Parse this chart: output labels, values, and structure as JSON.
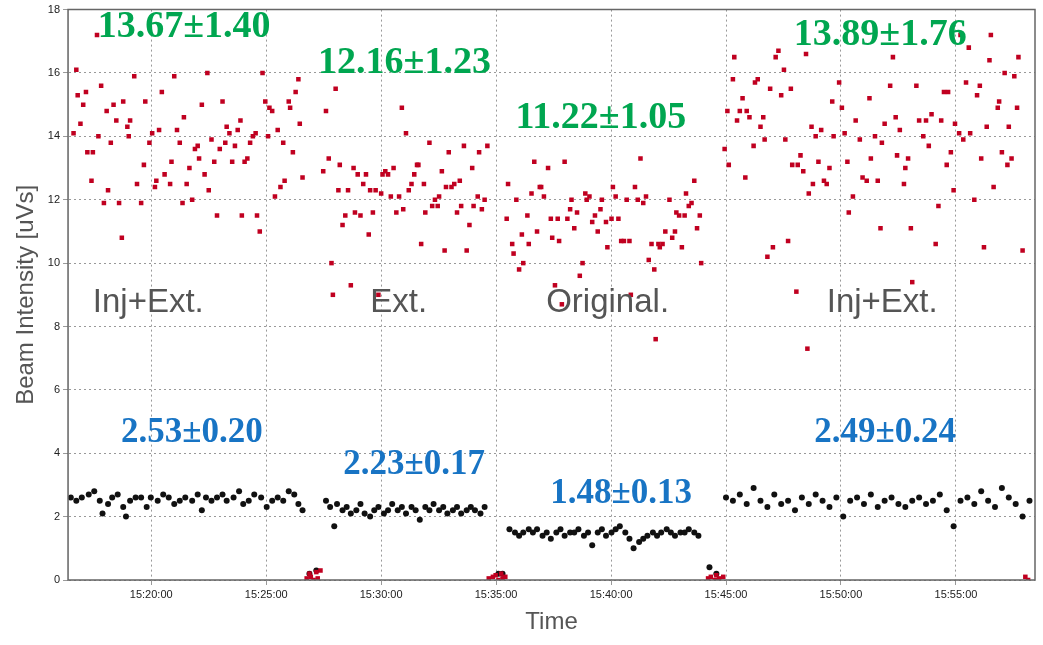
{
  "chart_data": {
    "type": "scatter",
    "xlabel": "Time",
    "ylabel": "Beam Intensity [uVs]",
    "xlim": [
      15.273,
      15.974
    ],
    "ylim": [
      0,
      18
    ],
    "xticks": [
      {
        "value": 15.3333,
        "label": "15:20:00"
      },
      {
        "value": 15.4167,
        "label": "15:25:00"
      },
      {
        "value": 15.5,
        "label": "15:30:00"
      },
      {
        "value": 15.5833,
        "label": "15:35:00"
      },
      {
        "value": 15.6667,
        "label": "15:40:00"
      },
      {
        "value": 15.75,
        "label": "15:45:00"
      },
      {
        "value": 15.8333,
        "label": "15:50:00"
      },
      {
        "value": 15.9167,
        "label": "15:55:00"
      }
    ],
    "yticks": [
      0,
      2,
      4,
      6,
      8,
      10,
      12,
      14,
      16,
      18
    ],
    "grid": true,
    "legend": false,
    "series": [
      {
        "color": "#c00020",
        "marker": "square",
        "x": [
          15.277,
          15.279,
          15.28,
          15.282,
          15.284,
          15.286,
          15.287,
          15.29,
          15.291,
          15.294,
          15.295,
          15.297,
          15.299,
          15.301,
          15.302,
          15.304,
          15.306,
          15.308,
          15.31,
          15.312,
          15.313,
          15.316,
          15.317,
          15.318,
          15.321,
          15.323,
          15.326,
          15.328,
          15.329,
          15.332,
          15.334,
          15.336,
          15.337,
          15.339,
          15.341,
          15.343,
          15.347,
          15.348,
          15.35,
          15.352,
          15.354,
          15.356,
          15.357,
          15.359,
          15.361,
          15.363,
          15.365,
          15.367,
          15.368,
          15.37,
          15.372,
          15.374,
          15.375,
          15.377,
          15.379,
          15.381,
          15.383,
          15.385,
          15.387,
          15.388,
          15.39,
          15.392,
          15.394,
          15.396,
          15.398,
          15.399,
          15.401,
          15.403,
          15.405,
          15.407,
          15.409,
          15.41,
          15.412,
          15.414,
          15.416,
          15.418,
          15.419,
          15.421,
          15.423,
          15.425,
          15.427,
          15.429,
          15.43,
          15.433,
          15.434,
          15.436,
          15.438,
          15.44,
          15.441,
          15.443,
          15.446,
          15.448,
          15.449,
          15.451,
          15.453,
          15.454,
          15.456,
          15.458,
          15.46,
          15.462,
          15.464,
          15.465,
          15.467,
          15.469,
          15.47,
          15.472,
          15.474,
          15.476,
          15.478,
          15.48,
          15.481,
          15.483,
          15.485,
          15.487,
          15.489,
          15.491,
          15.492,
          15.494,
          15.496,
          15.498,
          15.5,
          15.501,
          15.503,
          15.505,
          15.507,
          15.509,
          15.511,
          15.513,
          15.515,
          15.516,
          15.518,
          15.52,
          15.522,
          15.524,
          15.526,
          15.527,
          15.529,
          15.531,
          15.532,
          15.535,
          15.537,
          15.539,
          15.541,
          15.542,
          15.544,
          15.546,
          15.547,
          15.549,
          15.551,
          15.553,
          15.555,
          15.557,
          15.558,
          15.56,
          15.562,
          15.564,
          15.566,
          15.567,
          15.57,
          15.571,
          15.573,
          15.575,
          15.577,
          15.578,
          15.581,
          15.583,
          15.585,
          15.587,
          15.588,
          15.59,
          15.591,
          15.592,
          15.595,
          15.596,
          15.598,
          15.6,
          15.602,
          15.603,
          15.606,
          15.607,
          15.609,
          15.611,
          15.613,
          15.615,
          15.616,
          15.618,
          15.621,
          15.623,
          15.624,
          15.626,
          15.628,
          15.629,
          15.631,
          15.633,
          15.635,
          15.637,
          15.638,
          15.64,
          15.642,
          15.644,
          15.646,
          15.648,
          15.649,
          15.651,
          15.653,
          15.655,
          15.657,
          15.659,
          15.66,
          15.663,
          15.664,
          15.667,
          15.668,
          15.67,
          15.672,
          15.674,
          15.676,
          15.678,
          15.68,
          15.681,
          15.684,
          15.686,
          15.688,
          15.69,
          15.692,
          15.694,
          15.696,
          15.698,
          15.699,
          15.701,
          15.702,
          15.704,
          15.706,
          15.709,
          15.711,
          15.713,
          15.714,
          15.716,
          15.718,
          15.72,
          15.721,
          15.723,
          15.725,
          15.727,
          15.729,
          15.731,
          15.732,
          15.737,
          15.739,
          15.742,
          15.743,
          15.745,
          15.748,
          15.749,
          15.751,
          15.752,
          15.755,
          15.756,
          15.758,
          15.76,
          15.762,
          15.764,
          15.765,
          15.767,
          15.77,
          15.771,
          15.773,
          15.775,
          15.777,
          15.778,
          15.78,
          15.782,
          15.784,
          15.786,
          15.788,
          15.79,
          15.792,
          15.793,
          15.795,
          15.797,
          15.798,
          15.801,
          15.802,
          15.804,
          15.806,
          15.808,
          15.809,
          15.81,
          15.812,
          15.813,
          15.815,
          15.817,
          15.819,
          15.821,
          15.823,
          15.825,
          15.827,
          15.828,
          15.832,
          15.834,
          15.836,
          15.838,
          15.839,
          15.842,
          15.844,
          15.847,
          15.849,
          15.852,
          15.854,
          15.855,
          15.858,
          15.86,
          15.862,
          15.863,
          15.865,
          15.869,
          15.871,
          15.873,
          15.874,
          15.876,
          15.879,
          15.88,
          15.882,
          15.884,
          15.885,
          15.888,
          15.89,
          15.893,
          15.895,
          15.897,
          15.899,
          15.902,
          15.904,
          15.906,
          15.908,
          15.91,
          15.911,
          15.913,
          15.915,
          15.916,
          15.919,
          15.92,
          15.922,
          15.924,
          15.926,
          15.927,
          15.93,
          15.932,
          15.934,
          15.935,
          15.937,
          15.939,
          15.941,
          15.942,
          15.944,
          15.947,
          15.948,
          15.95,
          15.952,
          15.954,
          15.955,
          15.957,
          15.959,
          15.961,
          15.962,
          15.965,
          15.967,
          15.969
        ],
        "values": [
          14.1,
          16.1,
          15.3,
          14.4,
          15.0,
          15.4,
          13.5,
          12.6,
          13.5,
          17.2,
          14.0,
          15.6,
          11.9,
          14.8,
          12.3,
          13.8,
          15.0,
          14.5,
          11.9,
          10.8,
          15.1,
          14.3,
          14.0,
          14.5,
          15.9,
          12.5,
          11.9,
          13.1,
          15.1,
          13.8,
          14.1,
          12.4,
          12.6,
          14.2,
          15.4,
          12.8,
          12.5,
          13.2,
          15.9,
          14.2,
          13.8,
          11.9,
          14.6,
          12.5,
          13.0,
          12.0,
          13.6,
          13.7,
          13.3,
          15.0,
          12.8,
          16.0,
          12.3,
          13.9,
          13.2,
          11.5,
          13.6,
          15.1,
          13.8,
          14.3,
          14.1,
          13.2,
          13.7,
          14.2,
          14.5,
          11.5,
          13.2,
          13.3,
          13.8,
          14.0,
          14.1,
          11.5,
          11.0,
          16.0,
          15.1,
          14.0,
          14.9,
          14.8,
          12.1,
          14.2,
          12.4,
          13.8,
          12.6,
          15.1,
          14.9,
          13.5,
          15.4,
          15.8,
          14.4,
          12.7,
          0.05,
          0.2,
          0.1,
          0.0,
          0.25,
          0.05,
          0.3,
          12.9,
          14.8,
          13.3,
          10.0,
          9.0,
          15.5,
          12.3,
          13.1,
          11.2,
          11.5,
          12.3,
          9.3,
          13.0,
          11.6,
          12.8,
          11.5,
          12.5,
          12.8,
          10.9,
          12.3,
          11.6,
          12.3,
          9.0,
          12.2,
          12.8,
          12.9,
          12.8,
          12.1,
          13.0,
          11.6,
          12.1,
          14.9,
          11.7,
          14.1,
          12.3,
          12.5,
          12.8,
          13.1,
          13.1,
          10.6,
          12.5,
          11.6,
          13.8,
          11.8,
          12.0,
          11.8,
          12.1,
          12.9,
          10.4,
          12.4,
          13.5,
          12.4,
          12.5,
          11.6,
          12.6,
          11.8,
          13.7,
          10.4,
          11.2,
          13.0,
          11.8,
          12.1,
          13.5,
          11.7,
          12.0,
          13.7,
          0.05,
          0.1,
          0.15,
          0.0,
          0.2,
          0.05,
          0.1,
          11.4,
          12.5,
          10.6,
          10.3,
          12.0,
          9.8,
          10.9,
          10.0,
          11.5,
          10.6,
          12.2,
          13.2,
          11.0,
          12.4,
          12.4,
          12.1,
          13.0,
          11.4,
          10.8,
          9.3,
          11.4,
          10.7,
          8.7,
          13.2,
          11.4,
          11.7,
          12.0,
          11.1,
          11.6,
          9.6,
          10.0,
          12.2,
          12.0,
          12.1,
          11.3,
          11.5,
          11.0,
          11.7,
          12.0,
          11.3,
          10.5,
          11.4,
          12.4,
          12.1,
          11.4,
          10.7,
          10.7,
          12.0,
          10.7,
          9.0,
          12.4,
          12.0,
          13.3,
          11.9,
          12.1,
          10.1,
          10.6,
          9.8,
          7.6,
          10.6,
          10.5,
          10.6,
          11.0,
          12.0,
          10.8,
          11.0,
          11.6,
          11.5,
          10.5,
          11.5,
          12.2,
          11.8,
          11.9,
          12.6,
          11.1,
          11.5,
          10.0,
          0.05,
          0.1,
          0.0,
          0.15,
          0.05,
          0.1,
          13.6,
          14.8,
          13.1,
          15.8,
          16.5,
          14.5,
          14.8,
          15.2,
          12.7,
          14.8,
          14.6,
          13.7,
          15.7,
          15.8,
          14.3,
          14.6,
          13.9,
          10.2,
          15.5,
          10.5,
          16.5,
          16.7,
          15.3,
          16.1,
          13.9,
          10.7,
          15.5,
          13.1,
          9.1,
          13.1,
          13.4,
          12.9,
          16.6,
          7.3,
          12.2,
          14.3,
          12.5,
          14.0,
          13.2,
          14.2,
          12.6,
          12.5,
          13.0,
          15.1,
          14.0,
          15.7,
          14.9,
          14.1,
          13.2,
          11.6,
          12.1,
          14.5,
          13.9,
          12.7,
          12.6,
          15.2,
          13.3,
          14.0,
          12.6,
          11.1,
          13.8,
          14.4,
          15.6,
          16.5,
          14.6,
          13.4,
          14.2,
          12.5,
          13.0,
          13.3,
          11.1,
          9.4,
          15.6,
          14.5,
          14.0,
          14.5,
          13.7,
          14.7,
          10.6,
          11.8,
          14.5,
          15.4,
          13.1,
          15.4,
          13.5,
          12.3,
          14.4,
          14.1,
          17.2,
          13.9,
          15.7,
          16.8,
          14.1,
          12.0,
          15.3,
          15.6,
          13.3,
          10.5,
          14.3,
          16.4,
          17.2,
          12.4,
          14.9,
          15.1,
          13.5,
          16.0,
          13.1,
          14.3,
          13.3,
          15.9,
          14.9,
          16.5,
          10.4,
          0.1,
          0.0
        ]
      },
      {
        "color": "#111111",
        "marker": "circle",
        "x": [
          15.275,
          15.279,
          15.283,
          15.288,
          15.292,
          15.296,
          15.298,
          15.302,
          15.305,
          15.309,
          15.313,
          15.315,
          15.318,
          15.322,
          15.326,
          15.33,
          15.333,
          15.338,
          15.342,
          15.346,
          15.35,
          15.354,
          15.358,
          15.363,
          15.367,
          15.37,
          15.373,
          15.377,
          15.381,
          15.385,
          15.388,
          15.393,
          15.397,
          15.4,
          15.404,
          15.408,
          15.413,
          15.417,
          15.421,
          15.425,
          15.429,
          15.433,
          15.437,
          15.44,
          15.443,
          15.448,
          15.453,
          15.46,
          15.463,
          15.466,
          15.468,
          15.472,
          15.475,
          15.478,
          15.482,
          15.485,
          15.488,
          15.492,
          15.495,
          15.498,
          15.502,
          15.505,
          15.508,
          15.512,
          15.515,
          15.518,
          15.522,
          15.525,
          15.528,
          15.532,
          15.535,
          15.538,
          15.542,
          15.545,
          15.548,
          15.552,
          15.555,
          15.558,
          15.562,
          15.565,
          15.568,
          15.572,
          15.575,
          15.585,
          15.588,
          15.593,
          15.597,
          15.6,
          15.603,
          15.607,
          15.61,
          15.613,
          15.617,
          15.62,
          15.623,
          15.627,
          15.63,
          15.633,
          15.637,
          15.64,
          15.643,
          15.647,
          15.65,
          15.653,
          15.657,
          15.66,
          15.663,
          15.667,
          15.67,
          15.673,
          15.677,
          15.68,
          15.683,
          15.687,
          15.69,
          15.693,
          15.697,
          15.7,
          15.703,
          15.707,
          15.71,
          15.713,
          15.717,
          15.72,
          15.723,
          15.727,
          15.73,
          15.738,
          15.743,
          15.75,
          15.755,
          15.76,
          15.765,
          15.77,
          15.775,
          15.78,
          15.785,
          15.79,
          15.795,
          15.8,
          15.805,
          15.81,
          15.815,
          15.82,
          15.825,
          15.83,
          15.835,
          15.84,
          15.845,
          15.85,
          15.855,
          15.86,
          15.865,
          15.87,
          15.875,
          15.88,
          15.885,
          15.89,
          15.895,
          15.9,
          15.905,
          15.91,
          15.915,
          15.92,
          15.925,
          15.93,
          15.935,
          15.94,
          15.945,
          15.95,
          15.955,
          15.96,
          15.965,
          15.97
        ],
        "values": [
          2.6,
          2.5,
          2.6,
          2.7,
          2.8,
          2.5,
          2.1,
          2.4,
          2.6,
          2.7,
          2.3,
          2.0,
          2.5,
          2.6,
          2.6,
          2.3,
          2.6,
          2.5,
          2.7,
          2.6,
          2.4,
          2.5,
          2.6,
          2.5,
          2.7,
          2.2,
          2.6,
          2.5,
          2.6,
          2.7,
          2.5,
          2.6,
          2.8,
          2.4,
          2.5,
          2.7,
          2.6,
          2.3,
          2.5,
          2.6,
          2.5,
          2.8,
          2.7,
          2.4,
          2.2,
          0.2,
          0.3,
          2.5,
          2.3,
          1.7,
          2.4,
          2.2,
          2.3,
          2.1,
          2.2,
          2.4,
          2.1,
          2.0,
          2.2,
          2.3,
          2.1,
          2.2,
          2.4,
          2.2,
          2.3,
          2.1,
          2.3,
          2.2,
          1.9,
          2.3,
          2.2,
          2.4,
          2.2,
          2.3,
          2.1,
          2.2,
          2.3,
          2.1,
          2.2,
          2.3,
          2.2,
          2.1,
          2.3,
          0.2,
          0.2,
          1.6,
          1.5,
          1.4,
          1.5,
          1.6,
          1.5,
          1.6,
          1.4,
          1.5,
          1.3,
          1.5,
          1.6,
          1.4,
          1.5,
          1.5,
          1.6,
          1.4,
          1.5,
          1.1,
          1.5,
          1.6,
          1.4,
          1.5,
          1.6,
          1.7,
          1.5,
          1.3,
          1.0,
          1.2,
          1.3,
          1.4,
          1.5,
          1.4,
          1.5,
          1.6,
          1.5,
          1.4,
          1.5,
          1.5,
          1.6,
          1.5,
          1.4,
          0.4,
          0.2,
          2.6,
          2.5,
          2.7,
          2.4,
          2.9,
          2.5,
          2.3,
          2.7,
          2.4,
          2.5,
          2.2,
          2.6,
          2.4,
          2.7,
          2.5,
          2.3,
          2.6,
          2.0,
          2.5,
          2.6,
          2.4,
          2.7,
          2.3,
          2.5,
          2.6,
          2.4,
          2.3,
          2.5,
          2.6,
          2.4,
          2.5,
          2.7,
          2.2,
          1.7,
          2.5,
          2.6,
          2.4,
          2.8,
          2.5,
          2.3,
          2.9,
          2.6,
          2.4,
          2.0,
          2.5
        ]
      }
    ],
    "annotations": [
      "13.67±1.40",
      "12.16±1.23",
      "11.22±1.05",
      "13.89±1.76",
      "2.53±0.20",
      "2.23±0.17",
      "1.48±0.13",
      "2.49±0.24",
      "Inj+Ext.",
      "Ext.",
      "Original.",
      "Inj+Ext."
    ]
  }
}
